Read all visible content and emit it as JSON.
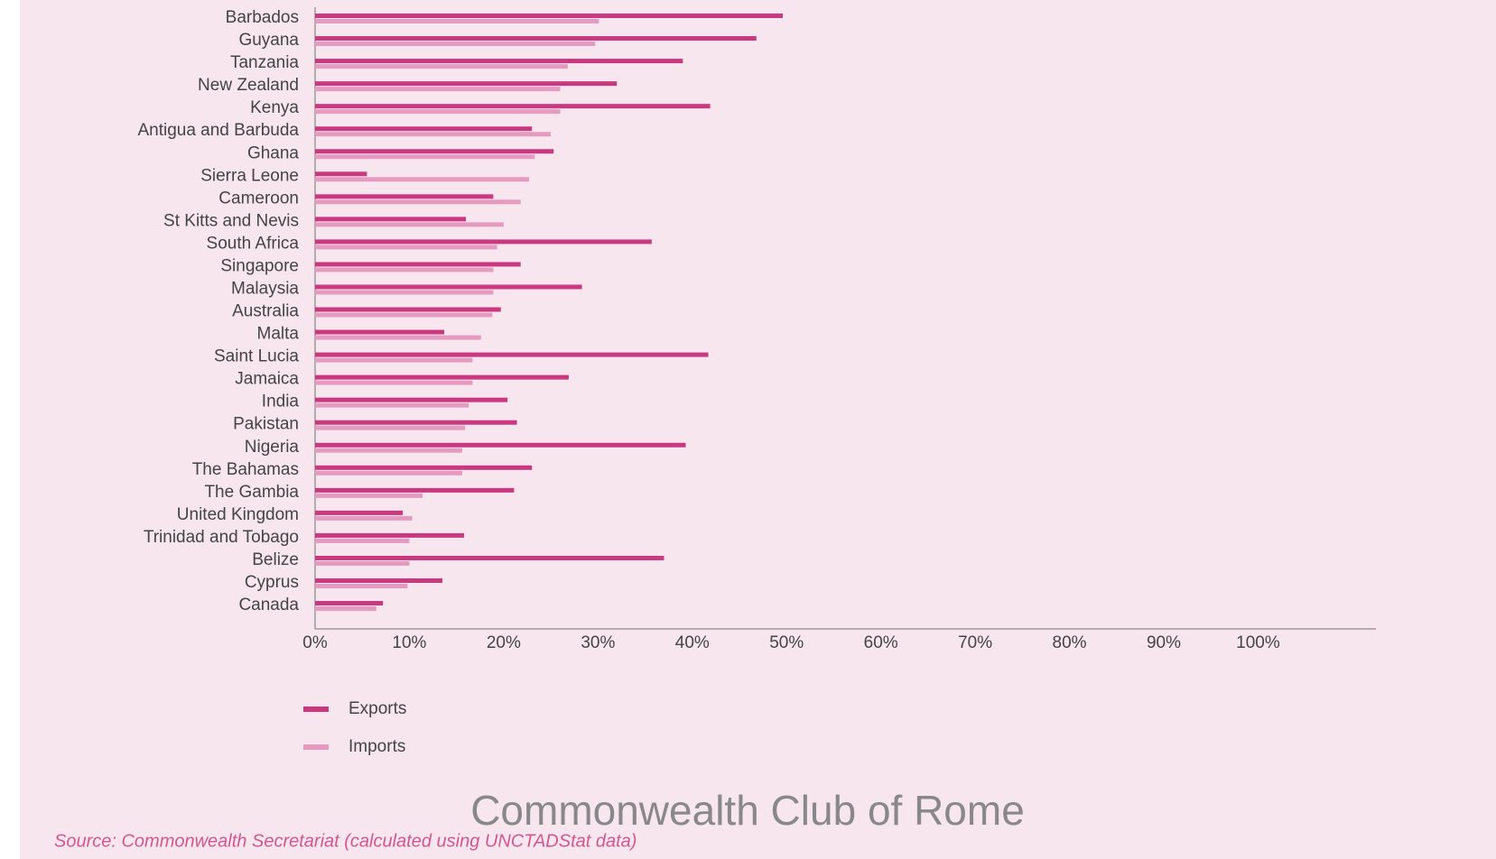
{
  "chart_data": {
    "type": "barh",
    "categories": [
      "Barbados",
      "Guyana",
      "Tanzania",
      "New Zealand",
      "Kenya",
      "Antigua and Barbuda",
      "Ghana",
      "Sierra Leone",
      "Cameroon",
      "St Kitts and Nevis",
      "South Africa",
      "Singapore",
      "Malaysia",
      "Australia",
      "Malta",
      "Saint Lucia",
      "Jamaica",
      "India",
      "Pakistan",
      "Nigeria",
      "The Bahamas",
      "The Gambia",
      "United Kingdom",
      "Trinidad and Tobago",
      "Belize",
      "Cyprus",
      "Canada"
    ],
    "series": [
      {
        "name": "Exports",
        "color": "#c9397f",
        "values": [
          49.6,
          46.8,
          39.0,
          32.0,
          41.9,
          23.0,
          25.3,
          5.5,
          18.9,
          16.0,
          35.7,
          21.8,
          28.3,
          19.7,
          13.7,
          41.7,
          26.9,
          20.4,
          21.4,
          39.3,
          23.0,
          21.1,
          9.3,
          15.8,
          37.0,
          13.5,
          7.2
        ]
      },
      {
        "name": "Imports",
        "color": "#e59bbf",
        "values": [
          30.1,
          29.7,
          26.8,
          26.0,
          26.0,
          25.0,
          23.3,
          22.7,
          21.8,
          20.0,
          19.3,
          18.9,
          18.9,
          18.8,
          17.6,
          16.7,
          16.7,
          16.3,
          15.9,
          15.6,
          15.6,
          11.4,
          10.3,
          10.0,
          10.0,
          9.8,
          6.5
        ]
      }
    ],
    "xlim": [
      0,
      112.5
    ],
    "xticks": [
      {
        "value": 0,
        "label": "0%"
      },
      {
        "value": 10,
        "label": "10%"
      },
      {
        "value": 20,
        "label": "20%"
      },
      {
        "value": 30,
        "label": "30%"
      },
      {
        "value": 40,
        "label": "40%"
      },
      {
        "value": 50,
        "label": "50%"
      },
      {
        "value": 60,
        "label": "60%"
      },
      {
        "value": 70,
        "label": "70%"
      },
      {
        "value": 80,
        "label": "80%"
      },
      {
        "value": 90,
        "label": "90%"
      },
      {
        "value": 100,
        "label": "100%"
      }
    ],
    "source": "Source: Commonwealth Secretariat (calculated using UNCTADStat data)",
    "watermark": "Commonwealth Club of Rome"
  }
}
